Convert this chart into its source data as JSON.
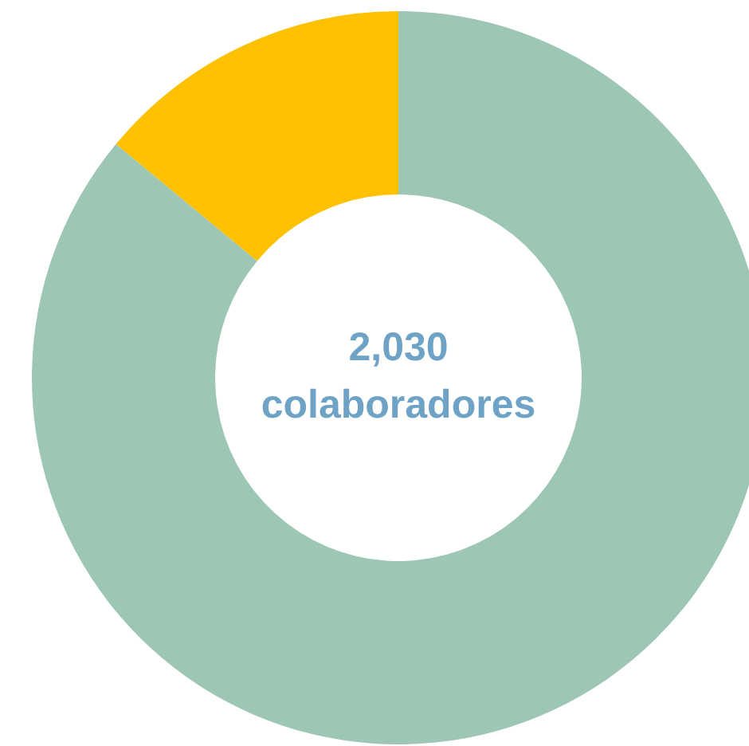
{
  "chart_data": {
    "type": "donut",
    "categories": [
      null,
      null
    ],
    "values": [
      86,
      14
    ],
    "colors": [
      "#9dc6b5",
      "#fdc100"
    ],
    "legend": false,
    "annotations": [
      "2,030",
      "colaboradores"
    ]
  }
}
